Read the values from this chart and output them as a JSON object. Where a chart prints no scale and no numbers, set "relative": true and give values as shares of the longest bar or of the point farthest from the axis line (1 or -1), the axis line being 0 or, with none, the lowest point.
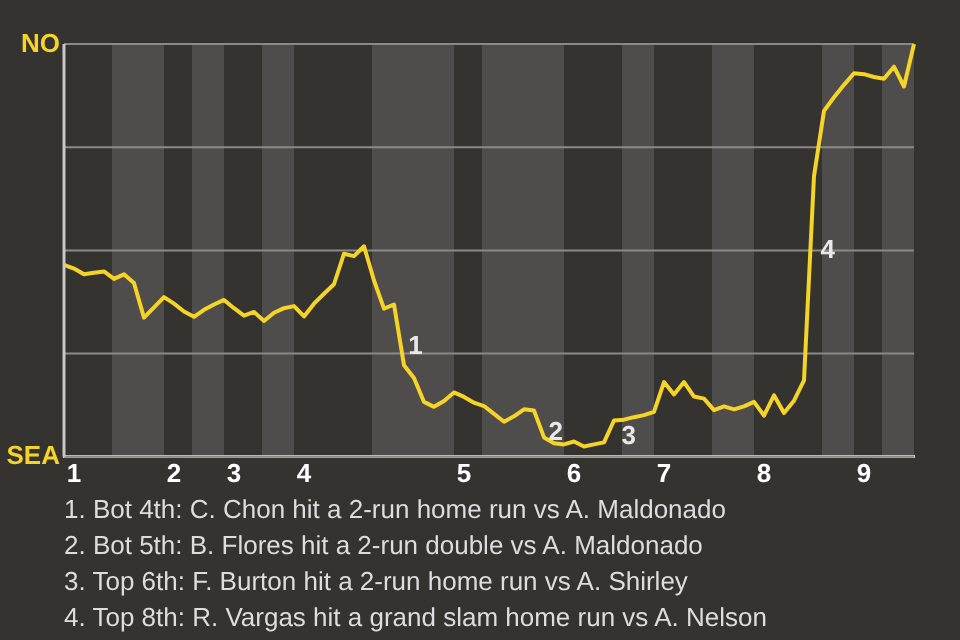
{
  "chart_data": {
    "type": "line",
    "relative": true,
    "categories": [
      null,
      "1",
      null,
      null,
      null,
      null,
      null,
      null,
      null,
      null,
      null,
      "2",
      null,
      null,
      null,
      null,
      null,
      "3",
      null,
      null,
      null,
      null,
      null,
      null,
      "4",
      null,
      null,
      null,
      null,
      null,
      null,
      null,
      null,
      null,
      null,
      null,
      null,
      null,
      null,
      null,
      "5",
      null,
      null,
      null,
      null,
      null,
      null,
      null,
      null,
      null,
      null,
      "6",
      null,
      null,
      null,
      null,
      null,
      null,
      null,
      null,
      "7",
      null,
      null,
      null,
      null,
      null,
      null,
      null,
      null,
      null,
      "8",
      null,
      null,
      null,
      null,
      null,
      null,
      null,
      null,
      null,
      "9",
      null,
      null,
      null,
      null,
      null
    ],
    "series": [
      {
        "color": "#f5d327",
        "values": [
          0.465,
          0.456,
          0.442,
          0.446,
          0.449,
          0.431,
          0.442,
          0.421,
          0.337,
          0.362,
          0.387,
          0.371,
          0.352,
          0.339,
          0.356,
          0.369,
          0.38,
          0.36,
          0.342,
          0.351,
          0.329,
          0.349,
          0.36,
          0.365,
          0.34,
          0.371,
          0.395,
          0.418,
          0.492,
          0.486,
          0.51,
          0.427,
          0.359,
          0.369,
          0.222,
          0.191,
          0.133,
          0.121,
          0.135,
          0.156,
          0.145,
          0.131,
          0.123,
          0.104,
          0.085,
          0.098,
          0.115,
          0.112,
          0.047,
          0.033,
          0.03,
          0.037,
          0.025,
          0.03,
          0.035,
          0.088,
          0.09,
          0.096,
          0.101,
          0.109,
          0.181,
          0.151,
          0.181,
          0.146,
          0.141,
          0.113,
          0.122,
          0.115,
          0.122,
          0.133,
          0.1,
          0.149,
          0.106,
          0.136,
          0.185,
          0.68,
          0.838,
          0.871,
          0.901,
          0.929,
          0.927,
          0.92,
          0.916,
          0.945,
          0.897,
          1.0
        ]
      }
    ],
    "grid": "y",
    "legend": false,
    "marker": "none",
    "line_style": "solid",
    "annotations": [
      "NO",
      "SEA",
      "1",
      "2",
      "3",
      "4",
      "1. Bot 4th: C. Chon hit a 2-run home run vs A. Maldonado",
      "2. Bot 5th: B. Flores hit a 2-run double vs A. Maldonado",
      "3. Top 6th: F. Burton hit a 2-run home run vs A. Shirley",
      "4. Top 8th: R. Vargas hit a grand slam home run vs A. Nelson"
    ]
  }
}
